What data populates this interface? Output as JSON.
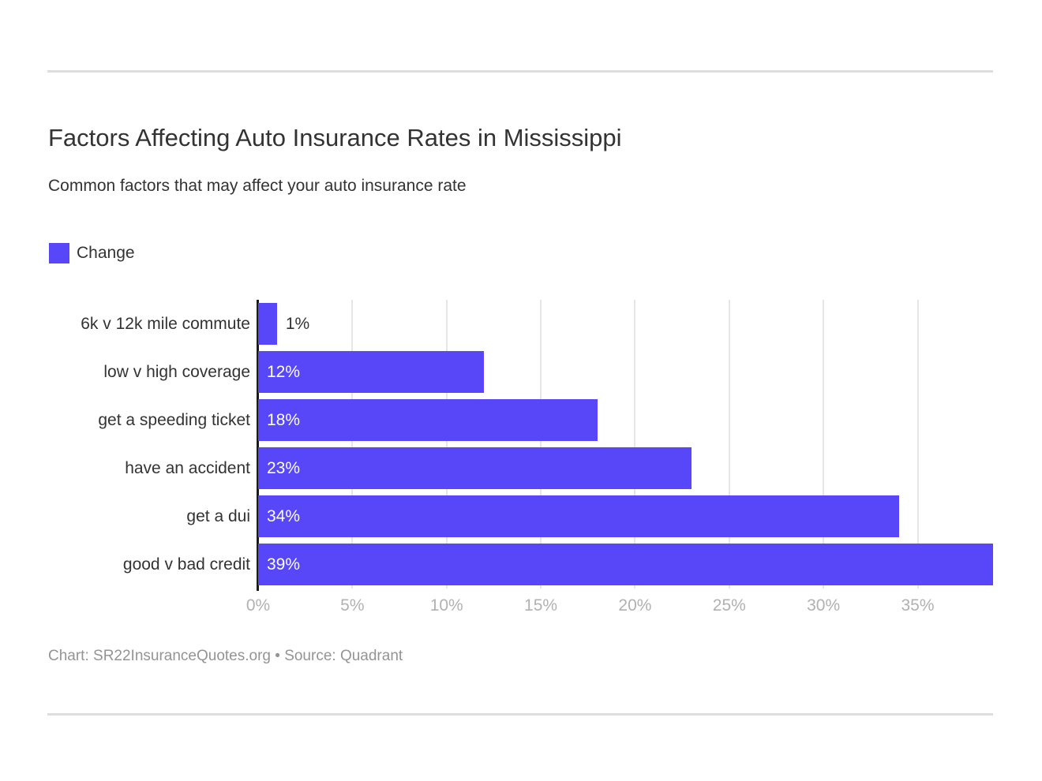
{
  "header": {
    "title": "Factors Affecting Auto Insurance Rates in Mississippi",
    "subtitle": "Common factors that may affect your auto insurance rate"
  },
  "legend": {
    "label": "Change",
    "color": "#5747f8"
  },
  "chart_data": {
    "type": "bar",
    "orientation": "horizontal",
    "title": "Factors Affecting Auto Insurance Rates in Mississippi",
    "subtitle": "Common factors that may affect your auto insurance rate",
    "series_name": "Change",
    "categories": [
      "6k v 12k mile commute",
      "low v high coverage",
      "get a speeding ticket",
      "have an accident",
      "get a dui",
      "good v bad credit"
    ],
    "values": [
      1,
      12,
      18,
      23,
      34,
      39
    ],
    "value_labels": [
      "1%",
      "12%",
      "18%",
      "23%",
      "34%",
      "39%"
    ],
    "xlabel": "",
    "ylabel": "",
    "xlim": [
      0,
      39
    ],
    "x_tick_values": [
      0,
      5,
      10,
      15,
      20,
      25,
      30,
      35
    ],
    "x_ticks": [
      "0%",
      "5%",
      "10%",
      "15%",
      "20%",
      "25%",
      "30%",
      "35%"
    ],
    "grid": true,
    "legend_position": "top-left",
    "bar_color": "#5747f8",
    "axis_line_color": "#1a1a1a",
    "gridline_color": "#e6e6e6",
    "tick_label_color": "#b1b1b1"
  },
  "footer": {
    "credit": "Chart: SR22InsuranceQuotes.org • Source: Quadrant"
  }
}
